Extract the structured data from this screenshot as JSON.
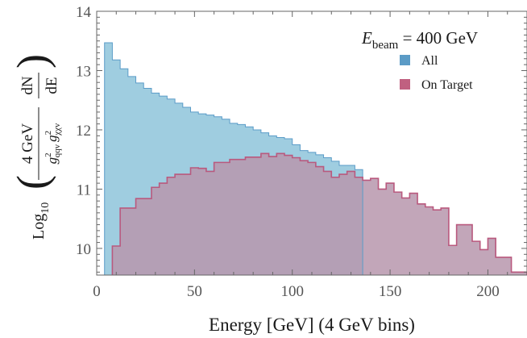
{
  "chart_data": {
    "type": "area",
    "xlabel": "Energy [GeV] (4 GeV bins)",
    "xlim": [
      0,
      220
    ],
    "ylim": [
      9.55,
      14
    ],
    "xticks": [
      0,
      50,
      100,
      150,
      200
    ],
    "yticks": [
      10,
      11,
      12,
      13,
      14
    ],
    "bin_width": 4,
    "legend_position": "top-right",
    "legend_title": {
      "E": "E",
      "sub": "beam",
      "rest": " = 400 GeV"
    },
    "ylabel": {
      "prefix": "Log",
      "prefix_sub": "10",
      "numerator": "4 GeV",
      "denominator_g": "g",
      "denominator_qqv_sub": "qqv",
      "denominator_chi_sub": "χχv",
      "sup": "2",
      "dn": "dN",
      "de": "dE"
    },
    "series": [
      {
        "name": "All",
        "fill": "#9fcde0",
        "stroke": "#5b9cc8",
        "legend_swatch": "#5b9bc6",
        "bins": [
          [
            4,
            13.47
          ],
          [
            8,
            13.18
          ],
          [
            12,
            13.03
          ],
          [
            16,
            12.9
          ],
          [
            20,
            12.79
          ],
          [
            24,
            12.7
          ],
          [
            28,
            12.62
          ],
          [
            32,
            12.57
          ],
          [
            36,
            12.52
          ],
          [
            40,
            12.45
          ],
          [
            44,
            12.38
          ],
          [
            48,
            12.3
          ],
          [
            52,
            12.27
          ],
          [
            56,
            12.25
          ],
          [
            60,
            12.22
          ],
          [
            64,
            12.18
          ],
          [
            68,
            12.11
          ],
          [
            72,
            12.09
          ],
          [
            76,
            12.05
          ],
          [
            80,
            12.0
          ],
          [
            84,
            11.95
          ],
          [
            88,
            11.9
          ],
          [
            92,
            11.87
          ],
          [
            96,
            11.85
          ],
          [
            100,
            11.75
          ],
          [
            104,
            11.65
          ],
          [
            108,
            11.62
          ],
          [
            112,
            11.58
          ],
          [
            116,
            11.53
          ],
          [
            120,
            11.47
          ],
          [
            124,
            11.4
          ],
          [
            128,
            11.4
          ],
          [
            132,
            11.33
          ]
        ]
      },
      {
        "name": "On Target",
        "fill": "#b796ad",
        "stroke": "#b9597e",
        "legend_swatch": "#c06080",
        "bins": [
          [
            8,
            10.04
          ],
          [
            12,
            10.68
          ],
          [
            16,
            10.68
          ],
          [
            20,
            10.84
          ],
          [
            24,
            10.84
          ],
          [
            28,
            11.03
          ],
          [
            32,
            11.1
          ],
          [
            36,
            11.2
          ],
          [
            40,
            11.25
          ],
          [
            44,
            11.25
          ],
          [
            48,
            11.36
          ],
          [
            52,
            11.35
          ],
          [
            56,
            11.3
          ],
          [
            60,
            11.45
          ],
          [
            64,
            11.45
          ],
          [
            68,
            11.5
          ],
          [
            72,
            11.5
          ],
          [
            76,
            11.54
          ],
          [
            80,
            11.54
          ],
          [
            84,
            11.6
          ],
          [
            88,
            11.55
          ],
          [
            92,
            11.6
          ],
          [
            96,
            11.57
          ],
          [
            100,
            11.53
          ],
          [
            104,
            11.48
          ],
          [
            108,
            11.45
          ],
          [
            112,
            11.38
          ],
          [
            116,
            11.3
          ],
          [
            120,
            11.2
          ],
          [
            124,
            11.25
          ],
          [
            128,
            11.3
          ],
          [
            132,
            11.2
          ],
          [
            136,
            11.15
          ],
          [
            140,
            11.18
          ],
          [
            144,
            11.0
          ],
          [
            148,
            11.1
          ],
          [
            152,
            10.95
          ],
          [
            156,
            10.85
          ],
          [
            160,
            10.93
          ],
          [
            164,
            10.75
          ],
          [
            168,
            10.7
          ],
          [
            172,
            10.65
          ],
          [
            176,
            10.68
          ],
          [
            180,
            10.05
          ],
          [
            184,
            10.4
          ],
          [
            188,
            10.4
          ],
          [
            192,
            10.12
          ],
          [
            196,
            9.98
          ],
          [
            200,
            10.17
          ],
          [
            204,
            9.85
          ],
          [
            208,
            9.85
          ],
          [
            212,
            9.6
          ],
          [
            216,
            9.6
          ]
        ]
      }
    ]
  }
}
